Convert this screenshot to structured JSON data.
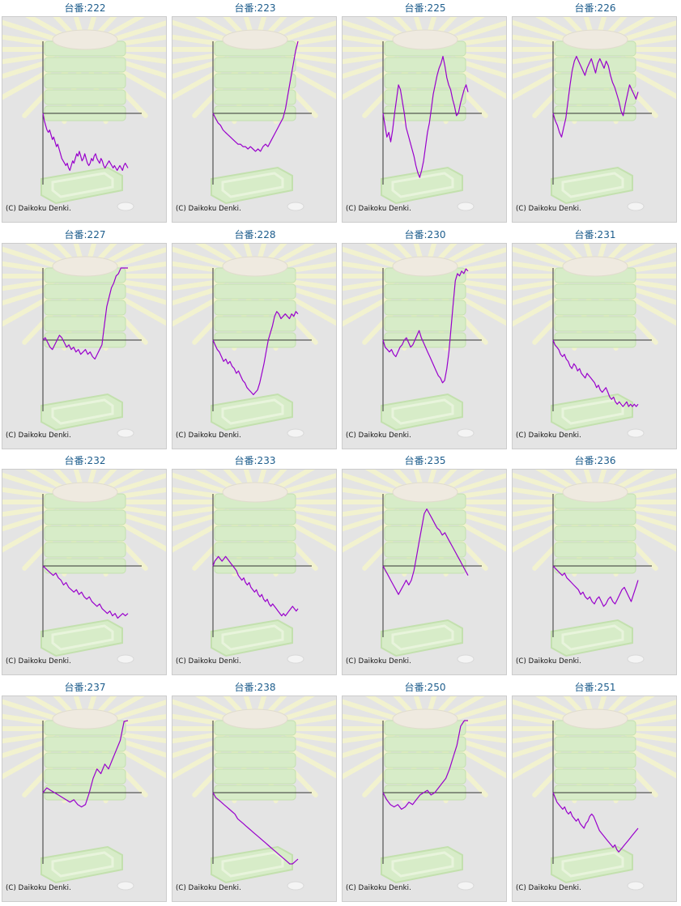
{
  "copyright_text": "(C) Daikoku Denki.",
  "colors": {
    "line": "#9900cc",
    "axis": "#333333",
    "panel_bg": "#e4e4e4",
    "title": "#1c5c8c"
  },
  "chart_data": [
    {
      "type": "line",
      "title": "台番:222",
      "values": [
        0,
        -3,
        -5,
        -7,
        -8,
        -7,
        -9,
        -11,
        -10,
        -12,
        -14,
        -13,
        -15,
        -17,
        -19,
        -20,
        -21,
        -22,
        -21,
        -23,
        -24,
        -22,
        -20,
        -21,
        -19,
        -17,
        -18,
        -16,
        -18,
        -20,
        -19,
        -17,
        -19,
        -21,
        -22,
        -21,
        -19,
        -20,
        -18,
        -17,
        -19,
        -20,
        -21,
        -19,
        -20,
        -22,
        -23,
        -22,
        -21,
        -20,
        -21,
        -22,
        -23,
        -22,
        -23,
        -24,
        -23,
        -22,
        -23,
        -24,
        -22,
        -21,
        -22,
        -23
      ]
    },
    {
      "type": "line",
      "title": "台番:223",
      "values": [
        0,
        -2,
        -4,
        -5,
        -7,
        -8,
        -9,
        -10,
        -11,
        -12,
        -13,
        -13,
        -14,
        -14,
        -15,
        -14,
        -15,
        -16,
        -15,
        -16,
        -14,
        -13,
        -14,
        -12,
        -10,
        -8,
        -6,
        -4,
        -2,
        2,
        8,
        14,
        20,
        26,
        31
      ]
    },
    {
      "type": "line",
      "title": "台番:225",
      "values": [
        0,
        -5,
        -10,
        -8,
        -12,
        -7,
        0,
        6,
        12,
        10,
        5,
        0,
        -6,
        -9,
        -12,
        -15,
        -18,
        -22,
        -25,
        -27,
        -24,
        -20,
        -14,
        -8,
        -4,
        2,
        8,
        12,
        16,
        19,
        21,
        24,
        20,
        15,
        12,
        10,
        6,
        3,
        -1,
        0,
        4,
        7,
        10,
        12,
        9
      ]
    },
    {
      "type": "line",
      "title": "台番:226",
      "values": [
        0,
        -3,
        -5,
        -8,
        -10,
        -6,
        -2,
        5,
        12,
        18,
        22,
        24,
        22,
        20,
        18,
        16,
        19,
        21,
        23,
        20,
        17,
        21,
        23,
        21,
        19,
        22,
        20,
        16,
        13,
        11,
        8,
        5,
        1,
        -1,
        4,
        8,
        12,
        10,
        8,
        6,
        9
      ]
    },
    {
      "type": "line",
      "title": "台番:227",
      "values": [
        0,
        1,
        -1,
        -3,
        -4,
        -2,
        0,
        2,
        1,
        -1,
        -3,
        -2,
        -4,
        -3,
        -5,
        -4,
        -6,
        -5,
        -4,
        -6,
        -5,
        -7,
        -8,
        -6,
        -4,
        -2,
        6,
        14,
        18,
        22,
        24,
        27,
        28,
        31,
        33,
        36,
        38
      ]
    },
    {
      "type": "line",
      "title": "台番:228",
      "values": [
        0,
        -2,
        -4,
        -5,
        -7,
        -9,
        -8,
        -10,
        -9,
        -11,
        -12,
        -14,
        -13,
        -15,
        -17,
        -18,
        -20,
        -21,
        -22,
        -23,
        -22,
        -21,
        -18,
        -14,
        -10,
        -5,
        0,
        3,
        6,
        10,
        12,
        11,
        9,
        10,
        11,
        10,
        9,
        11,
        10,
        12,
        11
      ]
    },
    {
      "type": "line",
      "title": "台番:230",
      "values": [
        0,
        -3,
        -4,
        -5,
        -4,
        -6,
        -7,
        -5,
        -3,
        -2,
        0,
        1,
        -1,
        -3,
        -2,
        0,
        2,
        4,
        1,
        -1,
        -3,
        -5,
        -7,
        -9,
        -11,
        -13,
        -15,
        -16,
        -18,
        -17,
        -12,
        -5,
        5,
        15,
        25,
        28,
        27,
        29,
        28,
        30,
        29
      ]
    },
    {
      "type": "line",
      "title": "台番:231",
      "values": [
        0,
        -2,
        -3,
        -4,
        -6,
        -7,
        -6,
        -8,
        -9,
        -11,
        -12,
        -10,
        -11,
        -13,
        -12,
        -14,
        -15,
        -16,
        -14,
        -15,
        -16,
        -17,
        -18,
        -20,
        -19,
        -21,
        -22,
        -21,
        -20,
        -22,
        -24,
        -25,
        -24,
        -26,
        -27,
        -26,
        -27,
        -28,
        -27,
        -26,
        -28,
        -27,
        -28,
        -27,
        -28,
        -27
      ]
    },
    {
      "type": "line",
      "title": "台番:232",
      "values": [
        0,
        -1,
        -2,
        -3,
        -4,
        -3,
        -5,
        -6,
        -8,
        -7,
        -9,
        -10,
        -11,
        -10,
        -12,
        -11,
        -13,
        -14,
        -13,
        -15,
        -16,
        -17,
        -16,
        -18,
        -19,
        -20,
        -19,
        -21,
        -20,
        -22,
        -21,
        -20,
        -21,
        -20
      ]
    },
    {
      "type": "line",
      "title": "台番:233",
      "values": [
        0,
        2,
        3,
        4,
        3,
        2,
        3,
        4,
        3,
        2,
        1,
        0,
        -1,
        -2,
        -4,
        -5,
        -6,
        -5,
        -7,
        -8,
        -7,
        -9,
        -10,
        -11,
        -10,
        -12,
        -13,
        -12,
        -14,
        -15,
        -14,
        -16,
        -17,
        -16,
        -17,
        -18,
        -19,
        -20,
        -21,
        -20,
        -21,
        -20,
        -19,
        -18,
        -17,
        -18,
        -19,
        -18
      ]
    },
    {
      "type": "line",
      "title": "台番:235",
      "values": [
        0,
        -2,
        -4,
        -6,
        -8,
        -10,
        -12,
        -10,
        -8,
        -6,
        -8,
        -6,
        -2,
        4,
        10,
        16,
        22,
        24,
        22,
        20,
        18,
        16,
        15,
        13,
        14,
        12,
        10,
        8,
        6,
        4,
        2,
        0,
        -2,
        -4
      ]
    },
    {
      "type": "line",
      "title": "台番:236",
      "values": [
        0,
        -1,
        -2,
        -3,
        -4,
        -3,
        -5,
        -6,
        -7,
        -8,
        -9,
        -10,
        -12,
        -11,
        -13,
        -14,
        -13,
        -15,
        -16,
        -14,
        -13,
        -15,
        -17,
        -16,
        -14,
        -13,
        -15,
        -16,
        -14,
        -12,
        -10,
        -9,
        -11,
        -13,
        -15,
        -12,
        -9,
        -6
      ]
    },
    {
      "type": "line",
      "title": "台番:237",
      "values": [
        0,
        2,
        1,
        0,
        -1,
        -2,
        -3,
        -4,
        -3,
        -5,
        -6,
        -5,
        0,
        6,
        10,
        8,
        12,
        10,
        14,
        18,
        22,
        30,
        40
      ]
    },
    {
      "type": "line",
      "title": "台番:238",
      "values": [
        0,
        -2,
        -3,
        -4,
        -5,
        -6,
        -7,
        -8,
        -9,
        -11,
        -12,
        -13,
        -14,
        -15,
        -16,
        -17,
        -18,
        -19,
        -20,
        -21,
        -22,
        -23,
        -24,
        -25,
        -26,
        -27,
        -28,
        -29,
        -30,
        -31,
        -29,
        -28
      ]
    },
    {
      "type": "line",
      "title": "台番:250",
      "values": [
        0,
        -3,
        -5,
        -6,
        -5,
        -7,
        -6,
        -4,
        -5,
        -3,
        -1,
        0,
        1,
        -1,
        0,
        2,
        4,
        6,
        10,
        15,
        20,
        28,
        36,
        46
      ]
    },
    {
      "type": "line",
      "title": "台番:251",
      "values": [
        0,
        -2,
        -4,
        -5,
        -6,
        -7,
        -6,
        -8,
        -9,
        -8,
        -10,
        -11,
        -12,
        -11,
        -13,
        -14,
        -15,
        -13,
        -12,
        -10,
        -9,
        -10,
        -12,
        -14,
        -16,
        -17,
        -18,
        -19,
        -20,
        -21,
        -22,
        -23,
        -22,
        -24,
        -25,
        -24,
        -23,
        -22,
        -21,
        -20,
        -19,
        -18,
        -17,
        -16,
        -15
      ]
    }
  ]
}
